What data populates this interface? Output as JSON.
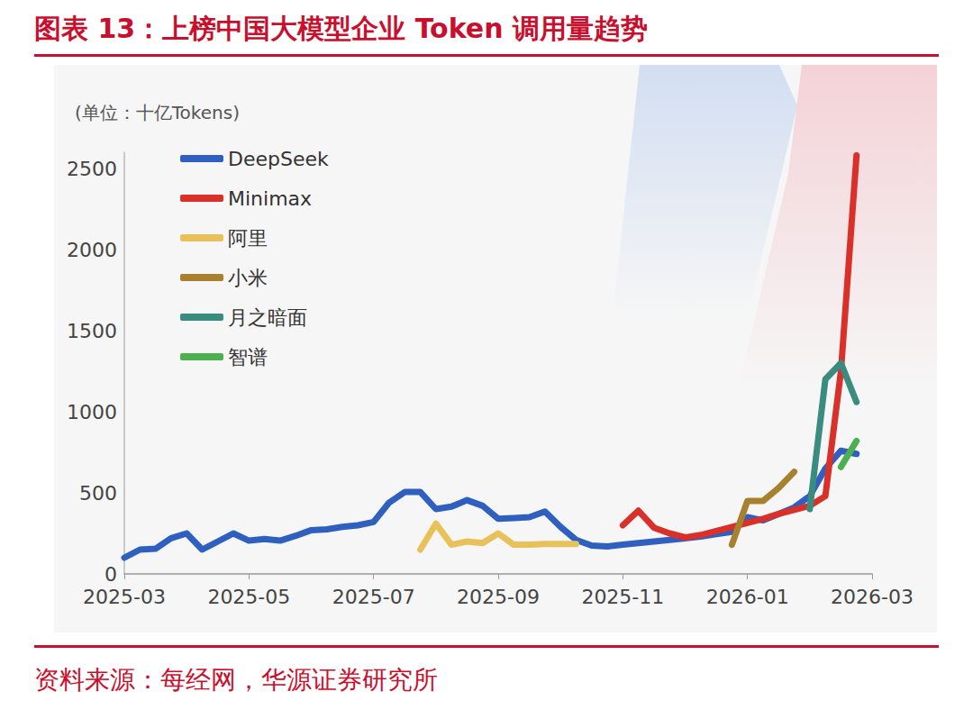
{
  "chart_data": {
    "type": "line",
    "title": "图表 13：上榜中国大模型企业 Token 调用量趋势",
    "source": "资料来源：每经网，华源证券研究所",
    "y_label": "(单位：十亿Tokens)",
    "categories": [
      "2025-03",
      null,
      null,
      null,
      null,
      null,
      null,
      null,
      "2025-05",
      null,
      null,
      null,
      null,
      null,
      null,
      null,
      "2025-07",
      null,
      null,
      null,
      null,
      null,
      null,
      null,
      "2025-09",
      null,
      null,
      null,
      null,
      null,
      null,
      null,
      "2025-11",
      null,
      null,
      null,
      null,
      null,
      null,
      null,
      "2026-01",
      null,
      null,
      null,
      null,
      null,
      null,
      null,
      "2026-03"
    ],
    "series": [
      {
        "name": "DeepSeek",
        "color": "#2f5fbf",
        "values": [
          100,
          150,
          155,
          220,
          250,
          150,
          200,
          250,
          205,
          215,
          205,
          235,
          270,
          275,
          290,
          300,
          320,
          440,
          505,
          505,
          400,
          415,
          455,
          420,
          340,
          345,
          350,
          385,
          290,
          210,
          175,
          170,
          180,
          190,
          200,
          210,
          220,
          230,
          245,
          260,
          350,
          330,
          370,
          410,
          480,
          650,
          760,
          740,
          null
        ]
      },
      {
        "name": "Minimax",
        "color": "#d9302a",
        "values": [
          null,
          null,
          null,
          null,
          null,
          null,
          null,
          null,
          null,
          null,
          null,
          null,
          null,
          null,
          null,
          null,
          null,
          null,
          null,
          null,
          null,
          null,
          null,
          null,
          null,
          null,
          null,
          null,
          null,
          null,
          null,
          null,
          300,
          390,
          285,
          250,
          225,
          240,
          265,
          290,
          315,
          340,
          370,
          395,
          420,
          480,
          1250,
          2580,
          null
        ]
      },
      {
        "name": "阿里",
        "color": "#e8c15a",
        "values": [
          null,
          null,
          null,
          null,
          null,
          null,
          null,
          null,
          null,
          null,
          null,
          null,
          null,
          null,
          null,
          null,
          null,
          null,
          null,
          150,
          310,
          180,
          200,
          190,
          250,
          180,
          180,
          185,
          185,
          185,
          null,
          null,
          null,
          null,
          null,
          null,
          null,
          null,
          null,
          null,
          null,
          null,
          null,
          null,
          null,
          null,
          null,
          null,
          null
        ]
      },
      {
        "name": "小米",
        "color": "#a8812f",
        "values": [
          null,
          null,
          null,
          null,
          null,
          null,
          null,
          null,
          null,
          null,
          null,
          null,
          null,
          null,
          null,
          null,
          null,
          null,
          null,
          null,
          null,
          null,
          null,
          null,
          null,
          null,
          null,
          null,
          null,
          null,
          null,
          null,
          null,
          null,
          null,
          null,
          null,
          null,
          null,
          180,
          450,
          450,
          530,
          630,
          null,
          null,
          null,
          null,
          null
        ]
      },
      {
        "name": "月之暗面",
        "color": "#3a8c7e",
        "values": [
          null,
          null,
          null,
          null,
          null,
          null,
          null,
          null,
          null,
          null,
          null,
          null,
          null,
          null,
          null,
          null,
          null,
          null,
          null,
          null,
          null,
          null,
          null,
          null,
          null,
          null,
          null,
          null,
          null,
          null,
          null,
          null,
          null,
          null,
          null,
          null,
          null,
          null,
          null,
          null,
          null,
          null,
          null,
          null,
          400,
          1200,
          1300,
          1060,
          null
        ]
      },
      {
        "name": "智谱",
        "color": "#4caf50",
        "values": [
          null,
          null,
          null,
          null,
          null,
          null,
          null,
          null,
          null,
          null,
          null,
          null,
          null,
          null,
          null,
          null,
          null,
          null,
          null,
          null,
          null,
          null,
          null,
          null,
          null,
          null,
          null,
          null,
          null,
          null,
          null,
          null,
          null,
          null,
          null,
          null,
          null,
          null,
          null,
          null,
          null,
          null,
          null,
          null,
          null,
          null,
          660,
          820,
          null
        ]
      }
    ],
    "ylim": [
      0,
      2600
    ],
    "yticks": [
      0,
      500,
      1000,
      1500,
      2000,
      2500
    ],
    "grid": false,
    "legend": "upper left"
  }
}
